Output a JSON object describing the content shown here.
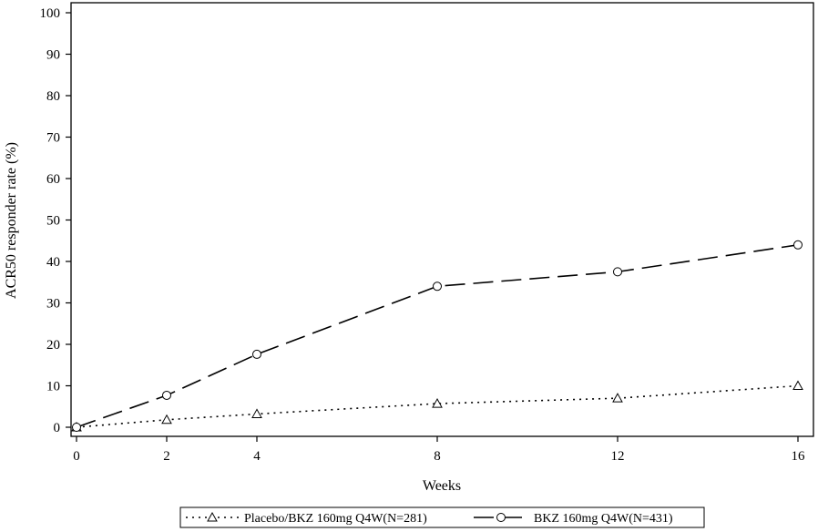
{
  "chart_data": {
    "type": "line",
    "xlabel": "Weeks",
    "ylabel": "ACR50 responder rate (%)",
    "xlim": [
      0,
      16
    ],
    "ylim": [
      0,
      100
    ],
    "x_ticks": [
      0,
      2,
      4,
      8,
      12,
      16
    ],
    "y_ticks": [
      0,
      10,
      20,
      30,
      40,
      50,
      60,
      70,
      80,
      90,
      100
    ],
    "x": [
      0,
      2,
      4,
      8,
      12,
      16
    ],
    "grid": false,
    "legend_position": "bottom",
    "series": [
      {
        "name": "Placebo/BKZ 160mg Q4W(N=281)",
        "values": [
          0,
          1.8,
          3.2,
          5.7,
          7.0,
          10.0
        ],
        "line_style": "dotted",
        "marker": "triangle",
        "color": "#000000"
      },
      {
        "name": "BKZ 160mg Q4W(N=431)",
        "values": [
          0,
          7.7,
          17.6,
          34.0,
          37.5,
          44.0
        ],
        "line_style": "dashed",
        "marker": "circle",
        "color": "#000000"
      }
    ]
  }
}
